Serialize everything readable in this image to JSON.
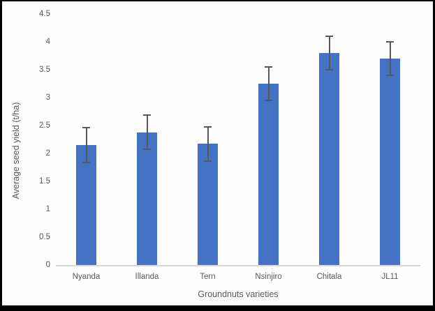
{
  "chart_data": {
    "type": "bar",
    "title": "",
    "xlabel": "Groundnuts varieties",
    "ylabel": "Average seed yield (t/ha)",
    "categories": [
      "Nyanda",
      "Illanda",
      "Tern",
      "Nsinjiro",
      "Chitala",
      "JL11"
    ],
    "values": [
      2.15,
      2.38,
      2.17,
      3.25,
      3.8,
      3.7
    ],
    "errors": [
      0.32,
      0.32,
      0.32,
      0.31,
      0.31,
      0.31
    ],
    "ylim": [
      0,
      4.5
    ],
    "y_tick_step": 0.5,
    "y_tick_labels_top_to_bottom": [
      "4.5",
      "4",
      "3.5",
      "3",
      "2.5",
      "2",
      "1.5",
      "1",
      "0.5",
      "0"
    ],
    "grid": false,
    "legend": false,
    "error_bars": true,
    "colors": {
      "bar": "#4472C4",
      "error_bar": "#595959",
      "axis_line": "#d9d9d9",
      "text": "#595959",
      "background": "#fefefe",
      "frame": "#000000"
    }
  }
}
